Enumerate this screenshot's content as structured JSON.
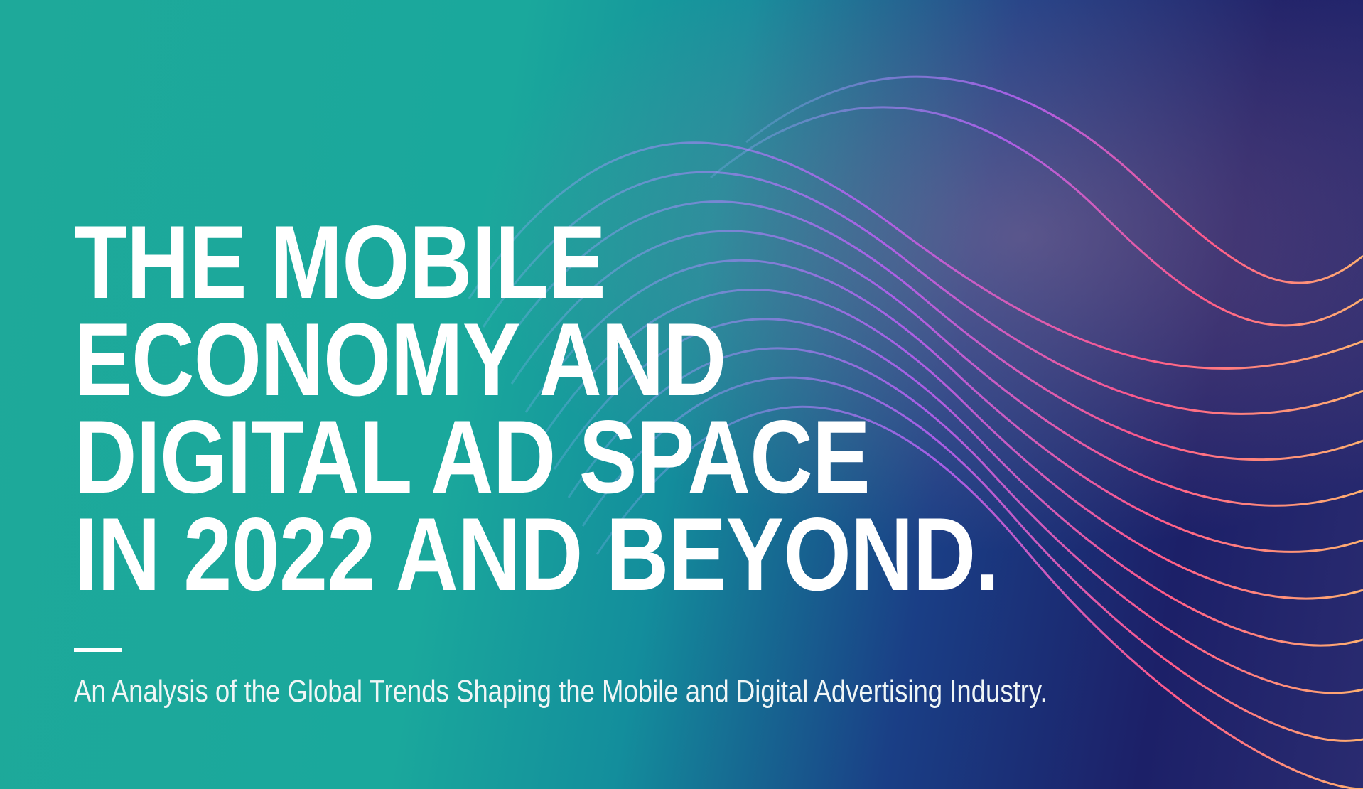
{
  "hero": {
    "title_lines": [
      "THE MOBILE",
      "ECONOMY AND",
      "DIGITAL AD SPACE",
      "IN 2022 AND BEYOND."
    ],
    "subtitle": "An Analysis of the Global Trends Shaping the Mobile and Digital Advertising Industry."
  }
}
